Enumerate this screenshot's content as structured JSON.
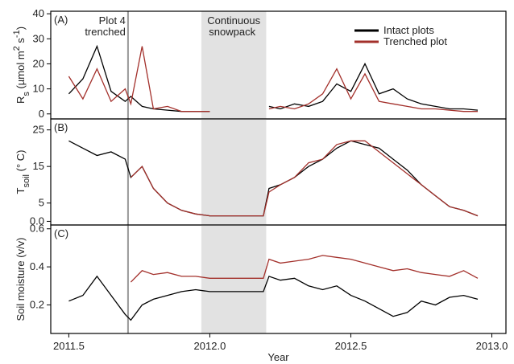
{
  "chart_data": [
    {
      "type": "line",
      "panel_label": "(A)",
      "y_label": [
        {
          "text": "R"
        },
        {
          "text": "s",
          "shift": "sub"
        },
        {
          "text": " (µmol m"
        },
        {
          "text": "2",
          "shift": "super"
        },
        {
          "text": " s"
        },
        {
          "text": "-1",
          "shift": "super"
        },
        {
          "text": ")"
        }
      ],
      "xlim": [
        2011.436,
        2013.05
      ],
      "ylim": [
        -2,
        41
      ],
      "yticks": [
        0,
        10,
        20,
        30,
        40
      ],
      "shade": [
        2011.97,
        2012.2
      ],
      "shade_label": [
        "Continuous",
        "snowpack"
      ],
      "vline": 2011.71,
      "vline_label": [
        "Plot 4",
        "trenched"
      ],
      "legend": "top-right",
      "series": [
        {
          "name": "Intact plots",
          "color": "#000000",
          "x": [
            2011.5,
            2011.55,
            2011.6,
            2011.65,
            2011.7,
            2011.72,
            2011.76,
            2011.8,
            2011.85,
            2011.9,
            2011.95,
            2012.0,
            2012.1,
            2012.19,
            2012.21,
            2012.25,
            2012.3,
            2012.35,
            2012.4,
            2012.45,
            2012.5,
            2012.55,
            2012.6,
            2012.65,
            2012.7,
            2012.75,
            2012.8,
            2012.85,
            2012.9,
            2012.95
          ],
          "values": [
            8,
            14,
            27,
            9,
            5,
            7,
            3,
            2,
            1.5,
            1,
            1,
            1,
            null,
            null,
            3,
            2,
            4,
            3,
            5,
            12,
            9,
            20,
            8,
            10,
            6,
            4,
            3,
            2,
            2,
            1.5
          ]
        },
        {
          "name": "Trenched plot",
          "color": "#a3302b",
          "x": [
            2011.5,
            2011.55,
            2011.6,
            2011.65,
            2011.7,
            2011.72,
            2011.76,
            2011.8,
            2011.85,
            2011.9,
            2011.95,
            2012.0,
            2012.1,
            2012.19,
            2012.21,
            2012.25,
            2012.3,
            2012.35,
            2012.4,
            2012.45,
            2012.5,
            2012.55,
            2012.6,
            2012.65,
            2012.7,
            2012.75,
            2012.8,
            2012.85,
            2012.9,
            2012.95
          ],
          "values": [
            15,
            6,
            18,
            5,
            10,
            4,
            27,
            2,
            3,
            1,
            1,
            1,
            null,
            null,
            2,
            3,
            2,
            4,
            8,
            18,
            6,
            16,
            5,
            4,
            3,
            2,
            2,
            1.5,
            1,
            1
          ]
        }
      ]
    },
    {
      "type": "line",
      "panel_label": "(B)",
      "y_label": [
        {
          "text": "T"
        },
        {
          "text": "soil",
          "shift": "sub"
        },
        {
          "text": " (° C)"
        }
      ],
      "xlim": [
        2011.436,
        2013.05
      ],
      "ylim": [
        -1,
        28
      ],
      "yticks": [
        {
          "value": 0,
          "label": "0.0"
        },
        5,
        15,
        25
      ],
      "series": [
        {
          "name": "Intact plots",
          "color": "#000000",
          "x": [
            2011.5,
            2011.55,
            2011.6,
            2011.65,
            2011.7,
            2011.72,
            2011.76,
            2011.8,
            2011.85,
            2011.9,
            2011.95,
            2012.0,
            2012.1,
            2012.19,
            2012.21,
            2012.25,
            2012.3,
            2012.35,
            2012.4,
            2012.45,
            2012.5,
            2012.55,
            2012.6,
            2012.65,
            2012.7,
            2012.75,
            2012.8,
            2012.85,
            2012.9,
            2012.95
          ],
          "values": [
            22,
            20,
            18,
            19,
            17,
            12,
            15,
            9,
            5,
            3,
            2,
            1.5,
            1.5,
            1.5,
            9,
            10,
            12,
            15,
            17,
            20,
            22,
            21,
            20,
            17,
            14,
            10,
            7,
            4,
            3,
            1.5
          ]
        },
        {
          "name": "Trenched plot",
          "color": "#a3302b",
          "x": [
            2011.72,
            2011.76,
            2011.8,
            2011.85,
            2011.9,
            2011.95,
            2012.0,
            2012.1,
            2012.19,
            2012.21,
            2012.25,
            2012.3,
            2012.35,
            2012.4,
            2012.45,
            2012.5,
            2012.55,
            2012.6,
            2012.65,
            2012.7,
            2012.75,
            2012.8,
            2012.85,
            2012.9,
            2012.95
          ],
          "values": [
            12,
            15,
            9,
            5,
            3,
            2,
            1.5,
            1.5,
            1.5,
            8,
            10,
            12,
            16,
            17,
            21,
            22,
            22,
            19,
            16,
            13,
            10,
            7,
            4,
            3,
            1.5
          ]
        }
      ]
    },
    {
      "type": "line",
      "panel_label": "(C)",
      "y_label": [
        {
          "text": "Soil moisture (v/v)"
        }
      ],
      "x_label": "Year",
      "xlim": [
        2011.436,
        2013.05
      ],
      "xticks": [
        2011.5,
        {
          "value": 2012,
          "label": "2012.0"
        },
        2012.5,
        {
          "value": 2013,
          "label": "2013.0"
        }
      ],
      "ylim": [
        0.05,
        0.62
      ],
      "yticks": [
        0.2,
        0.4,
        0.6
      ],
      "series": [
        {
          "name": "Intact plots",
          "color": "#000000",
          "x": [
            2011.5,
            2011.55,
            2011.6,
            2011.65,
            2011.7,
            2011.72,
            2011.76,
            2011.8,
            2011.85,
            2011.9,
            2011.95,
            2012.0,
            2012.1,
            2012.19,
            2012.21,
            2012.25,
            2012.3,
            2012.35,
            2012.4,
            2012.45,
            2012.5,
            2012.55,
            2012.6,
            2012.65,
            2012.7,
            2012.75,
            2012.8,
            2012.85,
            2012.9,
            2012.95
          ],
          "values": [
            0.22,
            0.25,
            0.35,
            0.25,
            0.15,
            0.12,
            0.2,
            0.23,
            0.25,
            0.27,
            0.28,
            0.27,
            0.27,
            0.27,
            0.35,
            0.33,
            0.34,
            0.3,
            0.28,
            0.3,
            0.25,
            0.22,
            0.18,
            0.14,
            0.16,
            0.22,
            0.2,
            0.24,
            0.25,
            0.23
          ]
        },
        {
          "name": "Trenched plot",
          "color": "#a3302b",
          "x": [
            2011.72,
            2011.76,
            2011.8,
            2011.85,
            2011.9,
            2011.95,
            2012.0,
            2012.1,
            2012.19,
            2012.21,
            2012.25,
            2012.3,
            2012.35,
            2012.4,
            2012.45,
            2012.5,
            2012.55,
            2012.6,
            2012.65,
            2012.7,
            2012.75,
            2012.8,
            2012.85,
            2012.9,
            2012.95
          ],
          "values": [
            0.32,
            0.38,
            0.36,
            0.37,
            0.35,
            0.35,
            0.34,
            0.34,
            0.34,
            0.44,
            0.42,
            0.43,
            0.44,
            0.46,
            0.45,
            0.44,
            0.42,
            0.4,
            0.38,
            0.39,
            0.37,
            0.36,
            0.35,
            0.38,
            0.34
          ]
        }
      ]
    }
  ]
}
